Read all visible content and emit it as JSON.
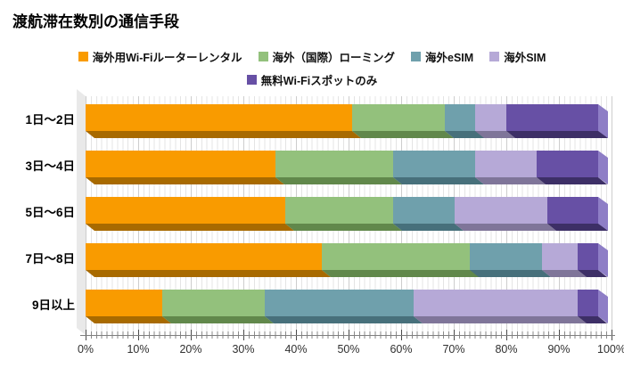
{
  "title": "渡航滞在数別の通信手段",
  "chart_data": {
    "type": "bar",
    "orientation": "horizontal",
    "stacked": true,
    "unit": "%",
    "title": "渡航滞在数別の通信手段",
    "categories": [
      "1日〜2日",
      "3日〜4日",
      "5日〜6日",
      "7日〜8日",
      "9日以上"
    ],
    "series": [
      {
        "name": "海外用Wi-Fiルーターレンタル",
        "color": "#F99B00",
        "shade": "#A86A00",
        "cap": "#FBB33F",
        "values": [
          52,
          37,
          39,
          46,
          15
        ]
      },
      {
        "name": "海外（国際）ローミング",
        "color": "#93C17C",
        "shade": "#61884B",
        "cap": "#AED29B",
        "values": [
          18,
          23,
          21,
          29,
          20
        ]
      },
      {
        "name": "海外eSIM",
        "color": "#6FA0AC",
        "shade": "#47707B",
        "cap": "#8FB7C0",
        "values": [
          6,
          16,
          12,
          14,
          29
        ]
      },
      {
        "name": "海外SIM",
        "color": "#B6A9D7",
        "shade": "#7F7599",
        "cap": "#CBC1E4",
        "values": [
          6,
          12,
          18,
          7,
          32
        ]
      },
      {
        "name": "無料Wi-Fiスポットのみ",
        "color": "#6750A5",
        "shade": "#3D2F66",
        "cap": "#8E7EC6",
        "values": [
          18,
          12,
          10,
          4,
          4
        ]
      }
    ],
    "x_ticks": [
      "0%",
      "10%",
      "20%",
      "30%",
      "40%",
      "50%",
      "60%",
      "70%",
      "80%",
      "90%",
      "100%"
    ],
    "xlim": [
      0,
      100
    ],
    "legend_rows": [
      [
        0,
        1,
        2,
        3
      ],
      [
        4
      ]
    ],
    "legend_position": "top-center",
    "grid": "vertical, minor every 1%, major every 10%",
    "style": "3d-beveled-bars"
  }
}
